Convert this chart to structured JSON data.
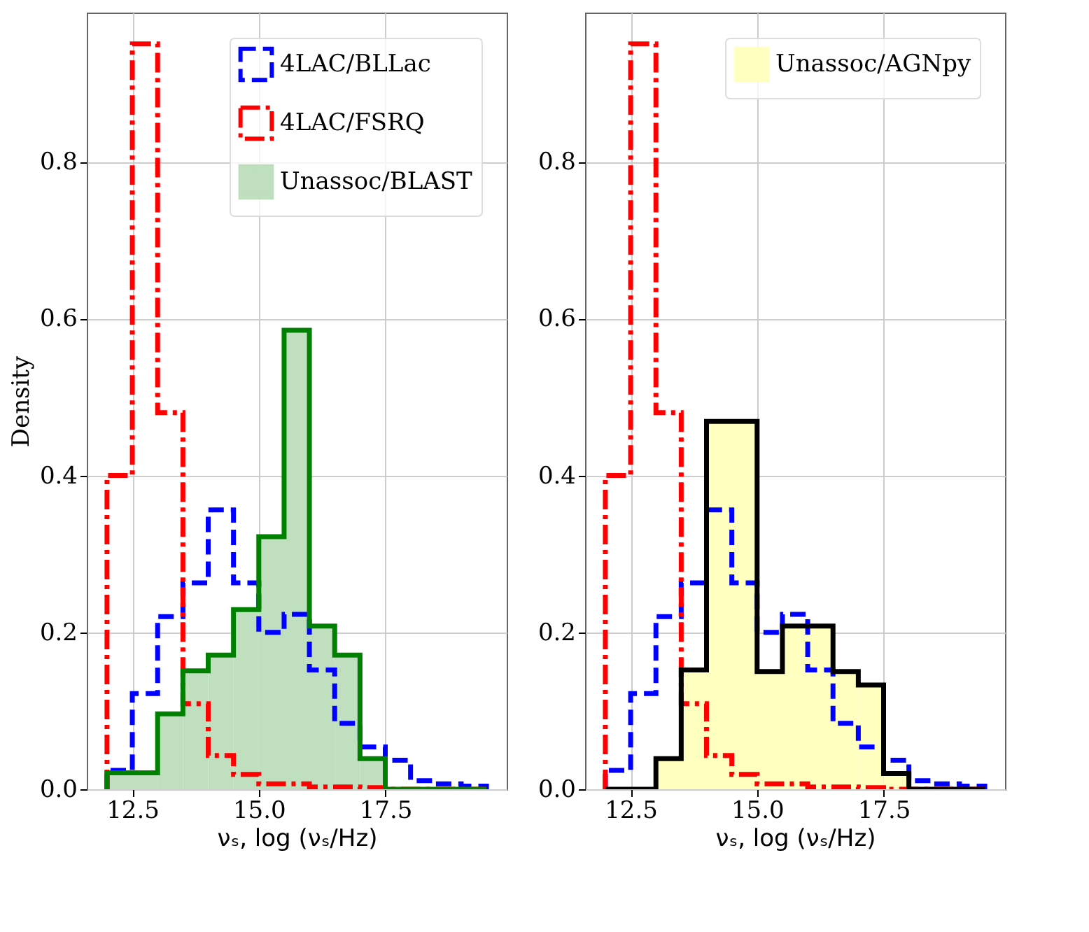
{
  "chart_data": [
    {
      "type": "histogram",
      "xlabel": "νₛ, log (νₛ/Hz)",
      "ylabel": "Density",
      "bins": [
        12,
        12.5,
        13,
        13.5,
        14,
        14.5,
        15,
        15.5,
        16,
        16.5,
        17,
        17.5,
        18,
        18.5,
        19,
        19.5
      ],
      "xlim": [
        11.6,
        19.9
      ],
      "ylim": [
        0,
        0.99
      ],
      "xticks": [
        {
          "value": 12.5,
          "label": "12.5"
        },
        {
          "value": 15,
          "label": "15.0"
        },
        {
          "value": 17.5,
          "label": "17.5"
        }
      ],
      "yticks": [
        {
          "value": 0,
          "label": "0.0"
        },
        {
          "value": 0.2,
          "label": "0.2"
        },
        {
          "value": 0.4,
          "label": "0.4"
        },
        {
          "value": 0.6,
          "label": "0.6"
        },
        {
          "value": 0.8,
          "label": "0.8"
        }
      ],
      "grid": true,
      "legend": "top right",
      "series": [
        {
          "name": "4LAC/BLLac",
          "color": "#0000ff",
          "line_style": "dashed",
          "values": [
            0.024,
            0.122,
            0.22,
            0.263,
            0.356,
            0.263,
            0.2,
            0.223,
            0.152,
            0.084,
            0.054,
            0.037,
            0.011,
            0.007,
            0.004
          ]
        },
        {
          "name": "4LAC/FSRQ",
          "color": "#ff0000",
          "line_style": "dashdot",
          "values": [
            0.4,
            0.95,
            0.48,
            0.109,
            0.043,
            0.019,
            0.007,
            0.007,
            0.003,
            0.003,
            0.002,
            0,
            0,
            0,
            0
          ]
        },
        {
          "name": "Unassoc/BLAST",
          "color": "#bfdfbf",
          "values": [
            0.021,
            0.021,
            0.096,
            0.151,
            0.171,
            0.229,
            0.322,
            0.585,
            0.208,
            0.171,
            0.039,
            0,
            0,
            0,
            0
          ]
        },
        {
          "color": "#008000",
          "line_style": "solid",
          "values": [
            0.021,
            0.021,
            0.096,
            0.151,
            0.171,
            0.229,
            0.322,
            0.585,
            0.208,
            0.171,
            0.039,
            0,
            0,
            0,
            0
          ]
        }
      ]
    },
    {
      "type": "histogram",
      "xlabel": "νₛ, log (νₛ/Hz)",
      "bins": [
        12,
        12.5,
        13,
        13.5,
        14,
        14.5,
        15,
        15.5,
        16,
        16.5,
        17,
        17.5,
        18,
        18.5,
        19,
        19.5
      ],
      "xlim": [
        11.6,
        19.9
      ],
      "ylim": [
        0,
        0.99
      ],
      "xticks": [
        {
          "value": 12.5,
          "label": "12.5"
        },
        {
          "value": 15,
          "label": "15.0"
        },
        {
          "value": 17.5,
          "label": "17.5"
        }
      ],
      "yticks": [
        {
          "value": 0,
          "label": "0.0"
        },
        {
          "value": 0.2,
          "label": "0.2"
        },
        {
          "value": 0.4,
          "label": "0.4"
        },
        {
          "value": 0.6,
          "label": "0.6"
        },
        {
          "value": 0.8,
          "label": "0.8"
        }
      ],
      "grid": true,
      "legend": "top right",
      "series": [
        {
          "name": "Unassoc/AGNpy",
          "color": "#ffffc0",
          "values": [
            0,
            0,
            0.039,
            0.152,
            0.469,
            0.469,
            0.15,
            0.208,
            0.208,
            0.15,
            0.133,
            0.02,
            0,
            0,
            0
          ]
        },
        {
          "color": "#0000ff",
          "line_style": "dashed",
          "values": [
            0.024,
            0.122,
            0.22,
            0.263,
            0.356,
            0.263,
            0.2,
            0.223,
            0.152,
            0.084,
            0.054,
            0.037,
            0.011,
            0.007,
            0.004
          ]
        },
        {
          "color": "#ff0000",
          "line_style": "dashdot",
          "values": [
            0.4,
            0.95,
            0.48,
            0.109,
            0.043,
            0.019,
            0.007,
            0.007,
            0.003,
            0.003,
            0.002,
            0,
            0,
            0,
            0
          ]
        },
        {
          "color": "#000000",
          "line_style": "solid",
          "values": [
            0,
            0,
            0.039,
            0.152,
            0.469,
            0.469,
            0.15,
            0.208,
            0.208,
            0.15,
            0.133,
            0.02,
            0,
            0,
            0
          ]
        }
      ]
    }
  ]
}
